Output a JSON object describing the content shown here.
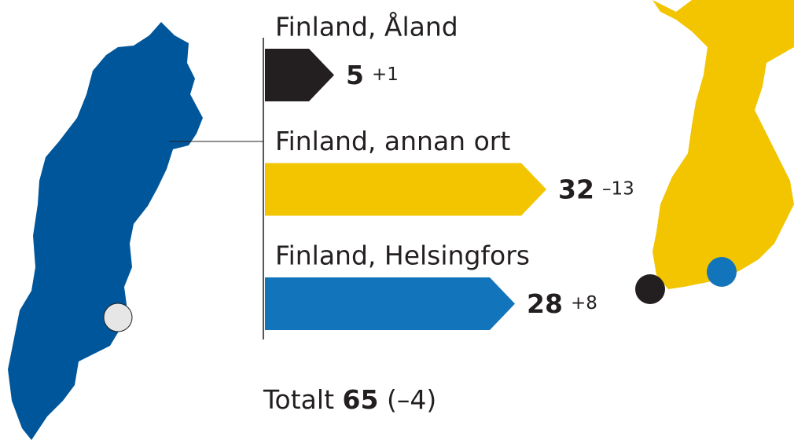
{
  "chart_data": {
    "type": "bar",
    "categories": [
      "Finland, Åland",
      "Finland, annan ort",
      "Finland, Helsingfors"
    ],
    "values": [
      5,
      32,
      28
    ],
    "colors": [
      "#231f20",
      "#f2c500",
      "#1275bb"
    ],
    "changes": [
      1,
      -13,
      8
    ],
    "changes_labels": [
      "+1",
      "–13",
      "+8"
    ],
    "total_label": "Totalt",
    "total": 65,
    "total_change": -4,
    "total_change_label": "(–4)"
  }
}
